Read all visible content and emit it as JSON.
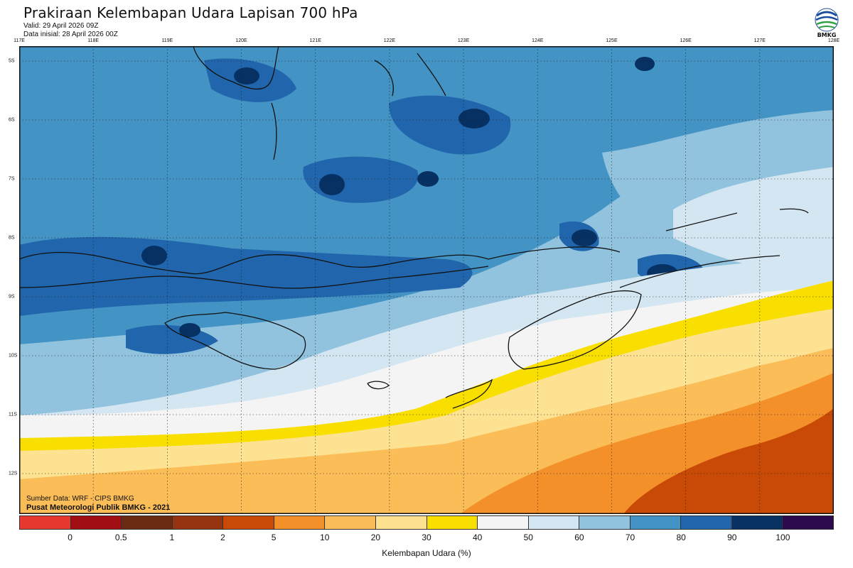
{
  "header": {
    "title": "Prakiraan Kelembapan Udara Lapisan 700 hPa",
    "valid": "Valid: 29 April 2026 09Z",
    "init": "Data inisial: 28 April 2026 00Z"
  },
  "logo": {
    "text": "BMKG",
    "icon": "bmkg-logo-icon"
  },
  "axes": {
    "longitudes": [
      "117E",
      "118E",
      "119E",
      "120E",
      "121E",
      "122E",
      "123E",
      "124E",
      "125E",
      "126E",
      "127E",
      "128E"
    ],
    "latitudes": [
      "5S",
      "6S",
      "7S",
      "8S",
      "9S",
      "10S",
      "11S",
      "12S"
    ]
  },
  "credits": {
    "source": "Sumber Data: WRF - CIPS BMKG",
    "center": "Pusat Meteorologi Publik BMKG - 2021"
  },
  "colorbar": {
    "title": "Kelembapan Udara (%)",
    "ticks": [
      "0",
      "0.5",
      "1",
      "2",
      "5",
      "10",
      "20",
      "30",
      "40",
      "50",
      "60",
      "70",
      "80",
      "90",
      "100"
    ],
    "colors": [
      "#e8392e",
      "#a10f14",
      "#6b2a12",
      "#963311",
      "#c94a06",
      "#f4902a",
      "#fbbd57",
      "#fde292",
      "#f9df00",
      "#f4f4f4",
      "#d4e6f2",
      "#92c3de",
      "#4393c4",
      "#2166ac",
      "#073162",
      "#2d0a4e"
    ]
  },
  "map_palette": {
    "h90": "#073162",
    "h80": "#2166ac",
    "h70": "#4393c4",
    "h60": "#92c3de",
    "h50": "#d4e6f2",
    "h40": "#f4f4f4",
    "h30": "#f9df00",
    "h20": "#fde292",
    "h10": "#fbbd57",
    "h5": "#f4902a",
    "h2": "#c94a06"
  }
}
